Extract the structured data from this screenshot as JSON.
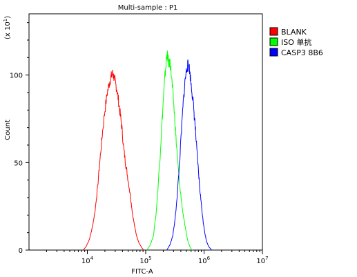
{
  "chart_data": {
    "type": "line",
    "title": "Multi-sample : P1",
    "xlabel": "FITC-A",
    "ylabel": "Count",
    "y_multiplier": "(x 10",
    "y_multiplier_exp": "1",
    "y_multiplier_close": ")",
    "x_scale": "log",
    "xlim": [
      1000,
      10000000
    ],
    "ylim": [
      0,
      135
    ],
    "y_ticks": [
      {
        "value": 0,
        "label": "0"
      },
      {
        "value": 50,
        "label": "50"
      },
      {
        "value": 100,
        "label": "100"
      }
    ],
    "x_ticks": [
      {
        "value": 10000,
        "base": "10",
        "exp": "4"
      },
      {
        "value": 100000,
        "base": "10",
        "exp": "5"
      },
      {
        "value": 1000000,
        "base": "10",
        "exp": "6"
      },
      {
        "value": 10000000,
        "base": "10",
        "exp": "7"
      }
    ],
    "legend_position": "right",
    "series": [
      {
        "name": "BLANK",
        "color": "#ff0000",
        "points": [
          [
            8500,
            0
          ],
          [
            9500,
            2
          ],
          [
            10800,
            6
          ],
          [
            12000,
            12
          ],
          [
            13500,
            22
          ],
          [
            15000,
            36
          ],
          [
            16500,
            52
          ],
          [
            18000,
            66
          ],
          [
            20000,
            80
          ],
          [
            22000,
            90
          ],
          [
            24000,
            96
          ],
          [
            25500,
            99
          ],
          [
            27000,
            101
          ],
          [
            28500,
            99
          ],
          [
            30000,
            96
          ],
          [
            32000,
            92
          ],
          [
            34000,
            86
          ],
          [
            36500,
            78
          ],
          [
            39000,
            70
          ],
          [
            42000,
            58
          ],
          [
            45000,
            50
          ],
          [
            48000,
            44
          ],
          [
            52000,
            36
          ],
          [
            56000,
            28
          ],
          [
            60000,
            20
          ],
          [
            65000,
            13
          ],
          [
            70000,
            8
          ],
          [
            77000,
            4
          ],
          [
            85000,
            1.5
          ],
          [
            92000,
            0
          ]
        ]
      },
      {
        "name": "ISO 单抗",
        "color": "#00ff00",
        "points": [
          [
            105000,
            0
          ],
          [
            120000,
            3
          ],
          [
            135000,
            8
          ],
          [
            150000,
            20
          ],
          [
            162000,
            35
          ],
          [
            175000,
            52
          ],
          [
            188000,
            70
          ],
          [
            200000,
            85
          ],
          [
            212000,
            98
          ],
          [
            225000,
            108
          ],
          [
            232000,
            112
          ],
          [
            240000,
            110
          ],
          [
            250000,
            106
          ],
          [
            262000,
            108
          ],
          [
            275000,
            100
          ],
          [
            292000,
            90
          ],
          [
            310000,
            78
          ],
          [
            330000,
            64
          ],
          [
            355000,
            50
          ],
          [
            380000,
            38
          ],
          [
            410000,
            28
          ],
          [
            440000,
            20
          ],
          [
            480000,
            12
          ],
          [
            520000,
            6
          ],
          [
            570000,
            2
          ],
          [
            620000,
            0
          ]
        ]
      },
      {
        "name": "CASP3 8B6",
        "color": "#0000ff",
        "points": [
          [
            230000,
            0
          ],
          [
            260000,
            3
          ],
          [
            290000,
            8
          ],
          [
            320000,
            18
          ],
          [
            350000,
            33
          ],
          [
            380000,
            50
          ],
          [
            410000,
            68
          ],
          [
            440000,
            84
          ],
          [
            470000,
            96
          ],
          [
            500000,
            103
          ],
          [
            530000,
            106
          ],
          [
            560000,
            104
          ],
          [
            590000,
            97
          ],
          [
            625000,
            90
          ],
          [
            660000,
            82
          ],
          [
            700000,
            72
          ],
          [
            740000,
            60
          ],
          [
            790000,
            48
          ],
          [
            840000,
            36
          ],
          [
            900000,
            26
          ],
          [
            960000,
            17
          ],
          [
            1030000,
            10
          ],
          [
            1100000,
            5
          ],
          [
            1200000,
            2
          ],
          [
            1350000,
            0
          ]
        ]
      }
    ]
  }
}
